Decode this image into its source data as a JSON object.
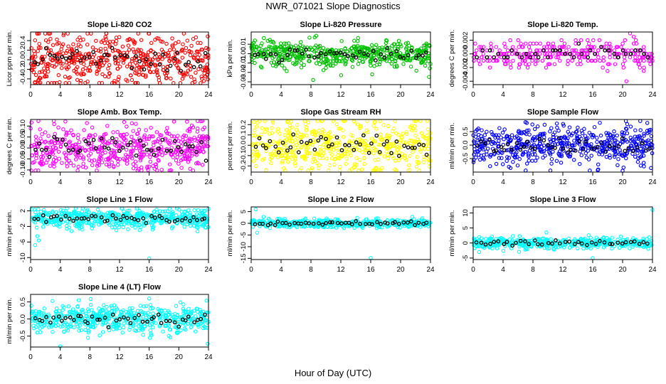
{
  "figure": {
    "title": "NWR_071021  Slope Diagnostics",
    "xlabel": "Hour of Day (UTC)"
  },
  "chart_data": [
    {
      "type": "scatter",
      "title": "Slope Li-820 CO2",
      "ylabel": "Licor ppm per min.",
      "color": "#ff0000",
      "xlim": [
        0,
        24
      ],
      "xticks": [
        0,
        4,
        8,
        12,
        16,
        20,
        24
      ],
      "ylim": [
        -0.52,
        0.58
      ],
      "yticks": [
        0.4,
        0.2,
        0.0,
        -0.2,
        -0.4
      ],
      "ytick_labels": [
        "0.4",
        "0.2",
        "0.0",
        "-0.2",
        "-0.4"
      ],
      "spread": 0.26,
      "n_points": 520,
      "n_black": 45,
      "quantized": false,
      "outliers": [
        [
          10.2,
          0.55
        ],
        [
          1.3,
          -0.48
        ],
        [
          11.9,
          -0.36
        ],
        [
          23.8,
          -0.32
        ]
      ]
    },
    {
      "type": "scatter",
      "title": "Slope Li-820 Pressure",
      "ylabel": "kPa per min.",
      "color": "#00c000",
      "xlim": [
        0,
        24
      ],
      "xticks": [
        0,
        4,
        8,
        12,
        16,
        20,
        24
      ],
      "ylim": [
        -0.033,
        0.023
      ],
      "yticks": [
        0.01,
        0.0,
        -0.01,
        -0.02,
        -0.03
      ],
      "ytick_labels": [
        "0.01",
        "0.00",
        "-0.01",
        "-0.02",
        "-0.03"
      ],
      "spread": 0.007,
      "n_points": 520,
      "n_black": 45,
      "quantized": false,
      "outliers": [
        [
          8.3,
          -0.028
        ],
        [
          8.7,
          0.019
        ],
        [
          7.8,
          0.017
        ],
        [
          16.2,
          -0.022
        ],
        [
          24,
          -0.011
        ]
      ]
    },
    {
      "type": "scatter",
      "title": "Slope Li-820 Temp.",
      "ylabel": "degrees C per min.",
      "color": "#ff00ff",
      "xlim": [
        0,
        24
      ],
      "xticks": [
        0,
        4,
        8,
        12,
        16,
        20,
        24
      ],
      "ylim": [
        -0.0045,
        0.0032
      ],
      "yticks": [
        0.002,
        0.0,
        -0.002,
        -0.004
      ],
      "ytick_labels": [
        "0.002",
        "0.000",
        "-0.002",
        "-0.004"
      ],
      "spread": 0.001,
      "n_points": 300,
      "n_black": 40,
      "quantized": true,
      "outliers": [
        [
          20.5,
          -0.004
        ],
        [
          21,
          0.003
        ]
      ]
    },
    {
      "type": "scatter",
      "title": "Slope Amb. Box Temp.",
      "ylabel": "degrees C per min.",
      "color": "#ff00ff",
      "xlim": [
        0,
        24
      ],
      "xticks": [
        0,
        4,
        8,
        12,
        16,
        20,
        24
      ],
      "ylim": [
        -0.11,
        0.13
      ],
      "yticks": [
        0.1,
        0.05,
        0.0,
        -0.05,
        -0.1
      ],
      "ytick_labels": [
        "0.10",
        "0.05",
        "0.00",
        "-0.05",
        "-0.10"
      ],
      "spread": 0.055,
      "n_points": 520,
      "n_black": 45,
      "quantized": false,
      "outliers": [
        [
          14.2,
          0.11
        ],
        [
          21.1,
          0.12
        ]
      ]
    },
    {
      "type": "scatter",
      "title": "Slope Gas Stream RH",
      "ylabel": "percent per min.",
      "color": "#ffff00",
      "xlim": [
        0,
        24
      ],
      "xticks": [
        0,
        4,
        8,
        12,
        16,
        20,
        24
      ],
      "ylim": [
        -0.26,
        0.25
      ],
      "yticks": [
        0.2,
        0.1,
        0.0,
        -0.1,
        -0.2
      ],
      "ytick_labels": [
        "0.2",
        "0.1",
        "0.0",
        "-0.1",
        "-0.2"
      ],
      "spread": 0.12,
      "n_points": 520,
      "n_black": 45,
      "quantized": false,
      "outliers": [
        [
          13.8,
          0.23
        ],
        [
          21.2,
          -0.24
        ]
      ]
    },
    {
      "type": "scatter",
      "title": "Slope Sample Flow",
      "ylabel": "ml/min per min.",
      "color": "#0000ff",
      "xlim": [
        0,
        24
      ],
      "xticks": [
        0,
        4,
        8,
        12,
        16,
        20,
        24
      ],
      "ylim": [
        -1.0,
        0.95
      ],
      "yticks": [
        0.5,
        0.0,
        -0.5
      ],
      "ytick_labels": [
        "0.5",
        "0.0",
        "-0.5"
      ],
      "spread": 0.35,
      "n_points": 520,
      "n_black": 45,
      "quantized": false,
      "outliers": [
        [
          5,
          -0.85
        ],
        [
          7,
          0.85
        ],
        [
          11.2,
          0.8
        ],
        [
          20,
          -0.95
        ],
        [
          23.8,
          -0.85
        ]
      ]
    },
    {
      "type": "scatter",
      "title": "Slope Line 1 Flow",
      "ylabel": "ml/min per min.",
      "color": "#00ffff",
      "xlim": [
        0,
        24
      ],
      "xticks": [
        0,
        4,
        8,
        12,
        16,
        20,
        24
      ],
      "ylim": [
        -10.5,
        3
      ],
      "yticks": [
        2,
        -2,
        -6,
        -10
      ],
      "ytick_labels": [
        "2",
        "-2",
        "-6",
        "-10"
      ],
      "spread": 1.2,
      "n_points": 520,
      "n_black": 45,
      "quantized": false,
      "outliers": [
        [
          0.6,
          -6.8
        ],
        [
          16,
          -10.2
        ],
        [
          0.9,
          -4.5
        ],
        [
          1.1,
          -5.6
        ],
        [
          24,
          2.5
        ]
      ]
    },
    {
      "type": "scatter",
      "title": "Slope Line 2 Flow",
      "ylabel": "ml/min per min.",
      "color": "#00ffff",
      "xlim": [
        0,
        24
      ],
      "xticks": [
        0,
        4,
        8,
        12,
        16,
        20,
        24
      ],
      "ylim": [
        -15.5,
        7
      ],
      "yticks": [
        5,
        0,
        -5,
        -10,
        -15
      ],
      "ytick_labels": [
        "5",
        "0",
        "-5",
        "-10",
        "-15"
      ],
      "spread": 0.9,
      "n_points": 450,
      "n_black": 45,
      "quantized": false,
      "outliers": [
        [
          16,
          -14.8
        ],
        [
          0.6,
          6
        ],
        [
          0.8,
          -4
        ]
      ]
    },
    {
      "type": "scatter",
      "title": "Slope Line 3 Flow",
      "ylabel": "ml/min per min.",
      "color": "#00ffff",
      "xlim": [
        0,
        24
      ],
      "xticks": [
        0,
        4,
        8,
        12,
        16,
        20,
        24
      ],
      "ylim": [
        -5.5,
        12
      ],
      "yticks": [
        10,
        5,
        0,
        -5
      ],
      "ytick_labels": [
        "10",
        "5",
        "0",
        "-5"
      ],
      "spread": 0.9,
      "n_points": 450,
      "n_black": 40,
      "quantized": false,
      "outliers": [
        [
          24,
          11
        ],
        [
          16,
          -5
        ],
        [
          9.8,
          3.5
        ],
        [
          0.8,
          -3
        ]
      ]
    },
    {
      "type": "scatter",
      "title": "Slope Line 4 (LT) Flow",
      "ylabel": "ml/min per min.",
      "color": "#00ffff",
      "xlim": [
        0,
        24
      ],
      "xticks": [
        0,
        4,
        8,
        12,
        16,
        20,
        24
      ],
      "ylim": [
        -0.82,
        0.72
      ],
      "yticks": [
        0.5,
        0.0,
        -0.5
      ],
      "ytick_labels": [
        "0.5",
        "0.0",
        "-0.5"
      ],
      "spread": 0.2,
      "n_points": 520,
      "n_black": 45,
      "quantized": false,
      "outliers": [
        [
          4,
          -0.8
        ],
        [
          16,
          0.6
        ],
        [
          16.1,
          -0.55
        ],
        [
          6.5,
          0.55
        ]
      ]
    }
  ]
}
